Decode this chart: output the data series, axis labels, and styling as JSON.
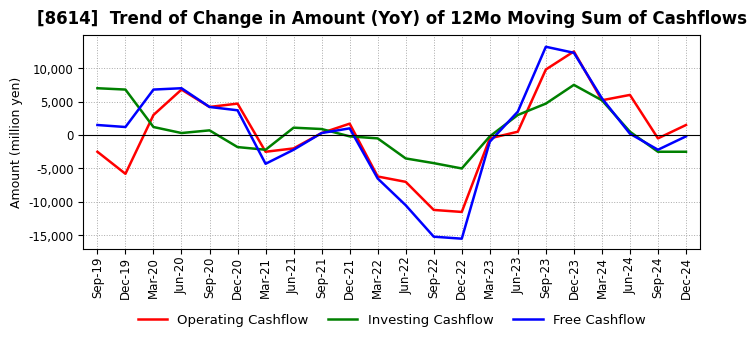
{
  "title": "[8614]  Trend of Change in Amount (YoY) of 12Mo Moving Sum of Cashflows",
  "ylabel": "Amount (million yen)",
  "x_labels": [
    "Sep-19",
    "Dec-19",
    "Mar-20",
    "Jun-20",
    "Sep-20",
    "Dec-20",
    "Mar-21",
    "Jun-21",
    "Sep-21",
    "Dec-21",
    "Mar-22",
    "Jun-22",
    "Sep-22",
    "Dec-22",
    "Mar-23",
    "Jun-23",
    "Sep-23",
    "Dec-23",
    "Mar-24",
    "Jun-24",
    "Sep-24",
    "Dec-24"
  ],
  "operating": [
    -2500,
    -5800,
    3000,
    6800,
    4200,
    4700,
    -2500,
    -2000,
    300,
    1700,
    -6200,
    -7000,
    -11200,
    -11500,
    -500,
    500,
    9800,
    12500,
    5200,
    6000,
    -500,
    1500
  ],
  "investing": [
    7000,
    6800,
    1200,
    300,
    700,
    -1800,
    -2200,
    1100,
    900,
    -200,
    -500,
    -3500,
    -4200,
    -5000,
    -200,
    3000,
    4700,
    7500,
    5200,
    500,
    -2500,
    -2500
  ],
  "free": [
    1500,
    1200,
    6800,
    7000,
    4200,
    3700,
    -4300,
    -2200,
    300,
    1000,
    -6500,
    -10500,
    -15200,
    -15500,
    -1000,
    3500,
    13200,
    12300,
    5500,
    200,
    -2200,
    -200
  ],
  "operating_color": "#ff0000",
  "investing_color": "#008000",
  "free_color": "#0000ff",
  "ylim": [
    -17000,
    15000
  ],
  "yticks": [
    -15000,
    -10000,
    -5000,
    0,
    5000,
    10000
  ],
  "plot_bg_color": "#ffffff",
  "fig_bg_color": "#ffffff",
  "grid_color": "#aaaaaa",
  "title_fontsize": 12,
  "axis_fontsize": 9,
  "tick_fontsize": 8.5,
  "legend_fontsize": 9.5,
  "linewidth": 1.8
}
